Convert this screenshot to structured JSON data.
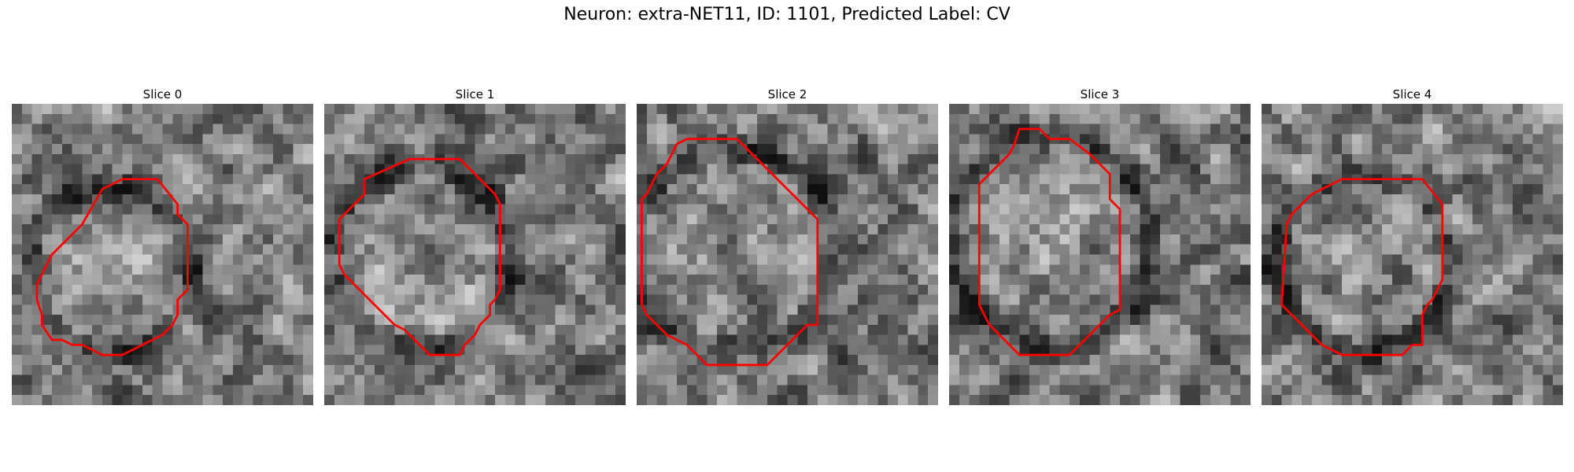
{
  "figure": {
    "title": "Neuron: extra-NET11, ID: 1101, Predicted Label: CV"
  },
  "style": {
    "contour_color": "#ff0000",
    "colormap": "grayscale"
  },
  "slices": [
    {
      "title": "Slice 0",
      "contour": [
        [
          11,
          7.5
        ],
        [
          14.5,
          7.5
        ],
        [
          16.5,
          10
        ],
        [
          16.5,
          11
        ],
        [
          17.5,
          12
        ],
        [
          17.5,
          18.5
        ],
        [
          16.5,
          19.5
        ],
        [
          16.5,
          21
        ],
        [
          16,
          22
        ],
        [
          15,
          23
        ],
        [
          11,
          25
        ],
        [
          9,
          25
        ],
        [
          7,
          24
        ],
        [
          6,
          24
        ],
        [
          5,
          23.5
        ],
        [
          4,
          23.5
        ],
        [
          3,
          22
        ],
        [
          3,
          21
        ],
        [
          2.5,
          19.5
        ],
        [
          2.5,
          18
        ],
        [
          3,
          17
        ],
        [
          4,
          15
        ],
        [
          5,
          14
        ],
        [
          6,
          13
        ],
        [
          7,
          12
        ],
        [
          9,
          8.5
        ]
      ]
    },
    {
      "title": "Slice 1",
      "contour": [
        [
          8.5,
          5.5
        ],
        [
          13.5,
          5.5
        ],
        [
          15.5,
          7.5
        ],
        [
          17,
          9
        ],
        [
          17.5,
          10
        ],
        [
          17.5,
          18.5
        ],
        [
          17,
          19.5
        ],
        [
          16.5,
          20
        ],
        [
          16.5,
          21
        ],
        [
          15.5,
          22
        ],
        [
          15,
          23
        ],
        [
          14,
          24
        ],
        [
          13.5,
          25
        ],
        [
          10.5,
          25
        ],
        [
          9,
          23.5
        ],
        [
          8,
          22.5
        ],
        [
          7,
          22
        ],
        [
          6,
          21
        ],
        [
          5,
          20
        ],
        [
          4,
          19
        ],
        [
          3,
          18
        ],
        [
          2,
          17
        ],
        [
          1.5,
          16
        ],
        [
          1.5,
          11.5
        ],
        [
          2.5,
          10.5
        ],
        [
          4,
          9
        ],
        [
          4,
          7.5
        ]
      ]
    },
    {
      "title": "Slice 2",
      "contour": [
        [
          5,
          3.5
        ],
        [
          10,
          3.5
        ],
        [
          12,
          5.5
        ],
        [
          13,
          6.5
        ],
        [
          14,
          7.5
        ],
        [
          15,
          8.5
        ],
        [
          16,
          9.5
        ],
        [
          17,
          10.5
        ],
        [
          18,
          11.5
        ],
        [
          18,
          22
        ],
        [
          17,
          22
        ],
        [
          16,
          23
        ],
        [
          15,
          24
        ],
        [
          14,
          25
        ],
        [
          13,
          26
        ],
        [
          7,
          26
        ],
        [
          6,
          25
        ],
        [
          5,
          24
        ],
        [
          3,
          23
        ],
        [
          2,
          22
        ],
        [
          1,
          21
        ],
        [
          0.5,
          20
        ],
        [
          0.5,
          9.5
        ],
        [
          1,
          9
        ],
        [
          2,
          7
        ],
        [
          3,
          6
        ],
        [
          3.5,
          5
        ],
        [
          4,
          4
        ]
      ]
    },
    {
      "title": "Slice 3",
      "contour": [
        [
          7,
          2.5
        ],
        [
          9,
          2.5
        ],
        [
          10,
          3.5
        ],
        [
          12,
          3.5
        ],
        [
          14,
          5
        ],
        [
          15,
          6
        ],
        [
          16,
          7
        ],
        [
          16,
          9.5
        ],
        [
          17,
          10.5
        ],
        [
          17,
          20.5
        ],
        [
          16,
          21
        ],
        [
          15,
          22
        ],
        [
          14,
          23
        ],
        [
          13,
          24
        ],
        [
          12,
          25
        ],
        [
          7,
          25
        ],
        [
          6,
          24
        ],
        [
          5,
          23
        ],
        [
          4,
          22
        ],
        [
          3.5,
          21
        ],
        [
          3,
          20
        ],
        [
          3,
          8
        ],
        [
          4,
          7
        ],
        [
          5,
          6
        ],
        [
          6,
          5
        ],
        [
          6.5,
          4
        ]
      ]
    },
    {
      "title": "Slice 4",
      "contour": [
        [
          8,
          7.5
        ],
        [
          16,
          7.5
        ],
        [
          18,
          10
        ],
        [
          18,
          17.5
        ],
        [
          17,
          19.5
        ],
        [
          16.5,
          20
        ],
        [
          16,
          21
        ],
        [
          16,
          24
        ],
        [
          15,
          24
        ],
        [
          14,
          25
        ],
        [
          8,
          25
        ],
        [
          6,
          24
        ],
        [
          5,
          23
        ],
        [
          4,
          22
        ],
        [
          3,
          21
        ],
        [
          2,
          20
        ],
        [
          2.5,
          12
        ],
        [
          3,
          11
        ],
        [
          4,
          10
        ],
        [
          5,
          9
        ],
        [
          6,
          8.5
        ]
      ]
    }
  ]
}
